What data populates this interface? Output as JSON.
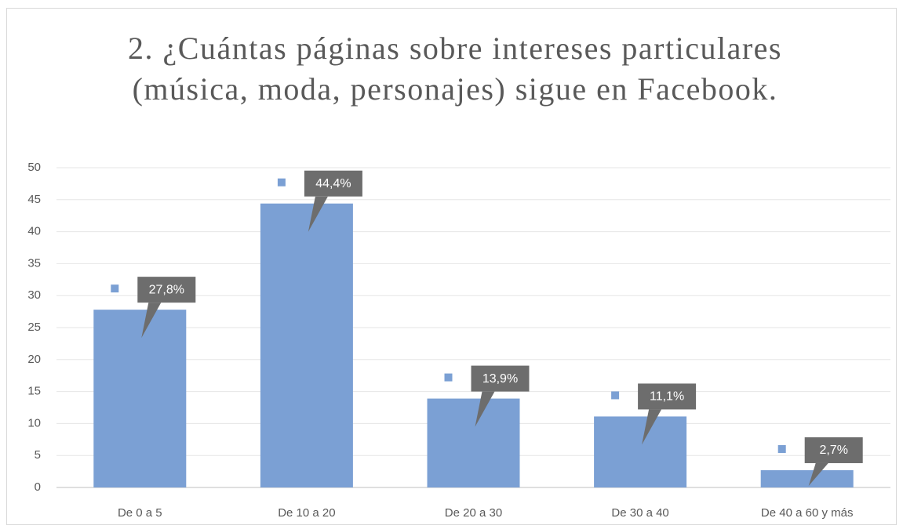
{
  "chart_data": {
    "type": "bar",
    "title": "2. ¿Cuántas páginas sobre intereses particulares (música, moda, personajes) sigue en Facebook.",
    "categories": [
      "De 0 a 5",
      "De 10 a 20",
      "De 20 a 30",
      "De 30 a 40",
      "De 40 a 60 y más"
    ],
    "values": [
      27.8,
      44.4,
      13.9,
      11.1,
      2.7
    ],
    "value_labels": [
      "27,8%",
      "44,4%",
      "13,9%",
      "11,1%",
      "2,7%"
    ],
    "color": "#7ba0d4",
    "ylim": [
      0,
      50
    ],
    "yticks": [
      0,
      5,
      10,
      15,
      20,
      25,
      30,
      35,
      40,
      45,
      50
    ],
    "grid": true
  }
}
